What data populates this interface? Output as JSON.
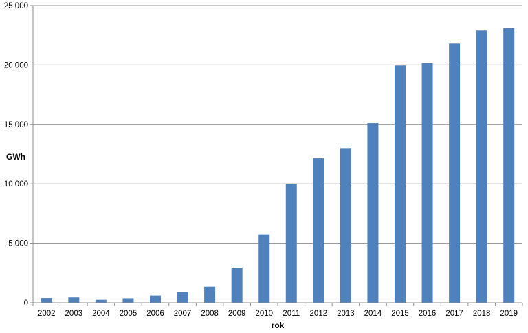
{
  "chart_data": {
    "type": "bar",
    "title": "",
    "xlabel": "rok",
    "ylabel": "GWh",
    "ylim": [
      0,
      25000
    ],
    "y_ticks": [
      "0",
      "5 000",
      "10 000",
      "15 000",
      "20 000",
      "25 000"
    ],
    "y_tick_values": [
      0,
      5000,
      10000,
      15000,
      20000,
      25000
    ],
    "grid": true,
    "legend": "none",
    "bar_color": "#4f81bd",
    "categories": [
      "2002",
      "2003",
      "2004",
      "2005",
      "2006",
      "2007",
      "2008",
      "2009",
      "2010",
      "2011",
      "2012",
      "2013",
      "2014",
      "2015",
      "2016",
      "2017",
      "2018",
      "2019"
    ],
    "values": [
      400,
      450,
      250,
      380,
      600,
      900,
      1350,
      2950,
      5750,
      10000,
      12150,
      13000,
      15100,
      19950,
      20150,
      21800,
      22900,
      23100
    ]
  }
}
